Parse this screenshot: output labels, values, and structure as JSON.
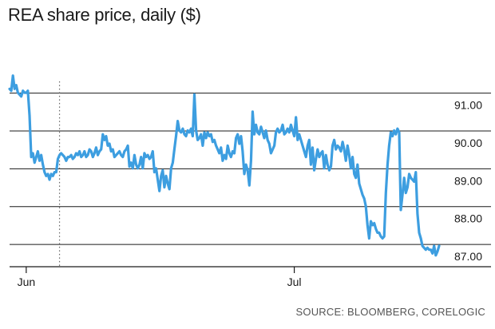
{
  "chart_data": {
    "type": "line",
    "title": "REA share price, daily ($)",
    "source": "SOURCE: BLOOMBERG, CORELOGIC",
    "xlabel": "",
    "ylabel": "",
    "ylim": [
      86.4,
      92.5
    ],
    "yticks": [
      {
        "value": 91,
        "label": "91.00"
      },
      {
        "value": 90,
        "label": "90.00"
      },
      {
        "value": 89,
        "label": "89.00"
      },
      {
        "value": 88,
        "label": "88.00"
      },
      {
        "value": 87,
        "label": "87.00"
      }
    ],
    "xticks": [
      {
        "index": 10,
        "label": "Jun"
      },
      {
        "index": 171,
        "label": "Jul"
      }
    ],
    "marker_index": 30,
    "grid": true,
    "colors": {
      "line": "#3d9ee0",
      "grid": "#1a1a1a",
      "text": "#1a1a1a",
      "source": "#555555"
    },
    "series": [
      {
        "values": [
          91.1,
          91.05,
          91.45,
          91.1,
          91.2,
          91.0,
          90.95,
          90.9,
          91.05,
          91.0,
          91.0,
          91.05,
          90.4,
          89.3,
          89.4,
          89.15,
          89.3,
          89.45,
          89.2,
          89.35,
          89.1,
          88.9,
          88.8,
          88.85,
          88.7,
          88.85,
          88.8,
          88.9,
          88.9,
          89.25,
          89.35,
          89.4,
          89.35,
          89.3,
          89.2,
          89.3,
          89.3,
          89.35,
          89.25,
          89.3,
          89.4,
          89.35,
          89.45,
          89.3,
          89.35,
          89.45,
          89.3,
          89.35,
          89.5,
          89.45,
          89.3,
          89.4,
          89.55,
          89.35,
          89.45,
          89.5,
          89.9,
          89.75,
          89.85,
          89.6,
          89.65,
          89.45,
          89.5,
          89.3,
          89.35,
          89.4,
          89.45,
          89.35,
          89.3,
          89.45,
          89.5,
          89.6,
          89.05,
          89.15,
          89.0,
          89.35,
          89.1,
          89.0,
          89.1,
          89.3,
          89.0,
          89.4,
          89.3,
          89.35,
          89.25,
          89.3,
          89.45,
          88.9,
          89.0,
          88.7,
          88.4,
          88.8,
          88.95,
          88.5,
          88.8,
          88.6,
          88.45,
          89.0,
          89.15,
          89.5,
          89.85,
          90.25,
          90.0,
          89.95,
          90.05,
          89.9,
          89.85,
          90.0,
          89.95,
          90.05,
          89.85,
          90.95,
          90.0,
          89.75,
          89.8,
          89.9,
          89.6,
          89.95,
          89.8,
          89.95,
          89.85,
          89.9,
          89.7,
          89.75,
          89.6,
          89.5,
          89.4,
          89.55,
          89.2,
          89.35,
          89.25,
          89.6,
          89.4,
          89.3,
          89.45,
          89.4,
          89.8,
          89.9,
          89.65,
          89.85,
          89.45,
          88.85,
          89.1,
          88.95,
          88.55,
          89.2,
          90.5,
          89.9,
          90.15,
          89.95,
          89.9,
          90.1,
          89.95,
          89.8,
          90.0,
          89.75,
          89.65,
          89.4,
          89.5,
          89.6,
          89.95,
          90.05,
          89.95,
          90.0,
          90.15,
          89.9,
          89.95,
          90.05,
          89.95,
          90.15,
          90.0,
          89.85,
          90.35,
          89.75,
          89.9,
          89.75,
          89.6,
          89.45,
          89.3,
          89.6,
          89.75,
          89.1,
          89.55,
          88.95,
          89.25,
          89.5,
          89.3,
          89.4,
          89.45,
          89.0,
          89.35,
          89.1,
          88.95,
          89.05,
          89.6,
          89.75,
          89.5,
          89.6,
          89.55,
          89.45,
          89.7,
          89.5,
          89.2,
          89.6,
          89.35,
          89.0,
          89.3,
          88.85,
          88.75,
          89.1,
          88.6,
          88.45,
          88.3,
          88.2,
          88.0,
          87.5,
          87.15,
          87.6,
          87.5,
          87.55,
          87.4,
          87.3,
          87.3,
          87.2,
          87.15,
          87.2,
          88.35,
          89.1,
          89.6,
          89.95,
          89.85,
          90.0,
          89.9,
          90.05,
          89.95,
          87.9,
          88.3,
          88.75,
          88.35,
          88.5,
          88.85,
          88.75,
          88.7,
          88.65,
          88.9,
          87.8,
          87.3,
          87.15,
          86.95,
          86.9,
          86.85,
          86.9,
          86.85,
          86.85,
          86.75,
          86.95,
          86.7,
          86.8,
          86.95
        ]
      }
    ]
  }
}
